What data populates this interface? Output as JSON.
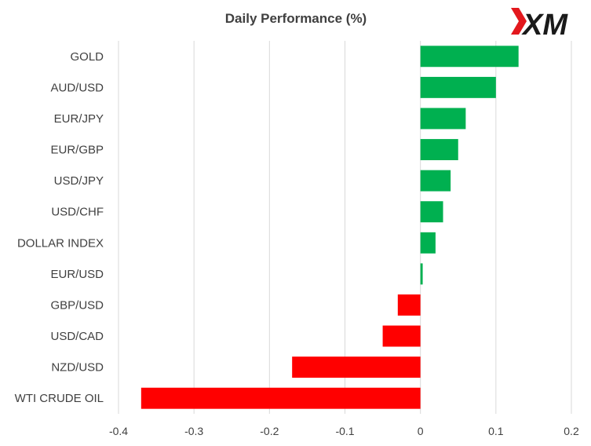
{
  "chart_data": {
    "type": "bar",
    "orientation": "horizontal",
    "title": "Daily Performance (%)",
    "categories": [
      "GOLD",
      "AUD/USD",
      "EUR/JPY",
      "EUR/GBP",
      "USD/JPY",
      "USD/CHF",
      "DOLLAR INDEX",
      "EUR/USD",
      "GBP/USD",
      "USD/CAD",
      "NZD/USD",
      "WTI CRUDE OIL"
    ],
    "values": [
      0.13,
      0.1,
      0.06,
      0.05,
      0.04,
      0.03,
      0.02,
      0.003,
      -0.03,
      -0.05,
      -0.17,
      -0.37
    ],
    "xlim": [
      -0.4,
      0.2
    ],
    "xticks": [
      -0.4,
      -0.3,
      -0.2,
      -0.1,
      0,
      0.1,
      0.2
    ],
    "xtick_labels": [
      "-0.4",
      "-0.3",
      "-0.2",
      "-0.1",
      "0",
      "0.1",
      "0.2"
    ],
    "grid": "vertical",
    "colors": {
      "positive": "#00b050",
      "negative": "#ff0000",
      "grid": "#d9d9d9"
    }
  },
  "logo": {
    "text": "XM",
    "accent_color": "#e3181d"
  }
}
